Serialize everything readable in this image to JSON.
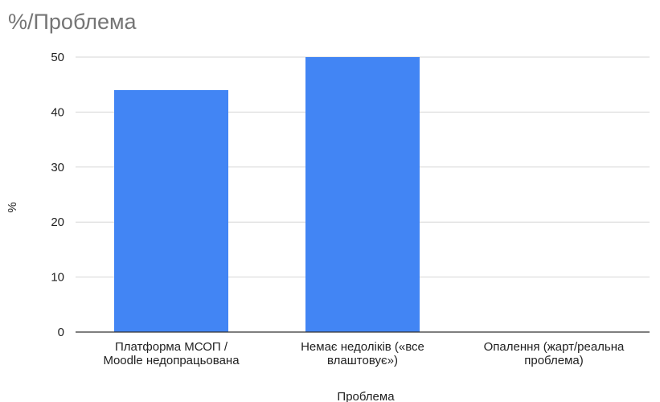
{
  "chart_data": {
    "type": "bar",
    "title": "%/Проблема",
    "xlabel": "Проблема",
    "ylabel": "%",
    "categories": [
      [
        "Платформа МСОП /",
        "Moodle недопрацьована"
      ],
      [
        "Немає недоліків («все",
        "влаштовує»)"
      ],
      [
        "Опалення (жарт/реальна",
        "проблема)"
      ]
    ],
    "values": [
      44,
      50,
      0
    ],
    "ylim": [
      0,
      50
    ],
    "yticks": [
      "0",
      "10",
      "20",
      "30",
      "40",
      "50"
    ],
    "grid": true,
    "bar_color": "#4285f4"
  }
}
